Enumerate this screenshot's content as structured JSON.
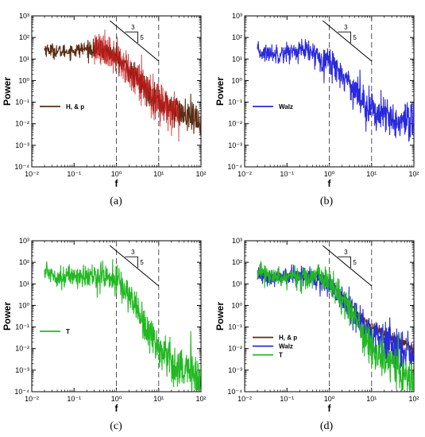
{
  "colors": {
    "hp": "#5a2d14",
    "hp_red": "#c01818",
    "walz": "#2a2adc",
    "t": "#22b822"
  },
  "chart_data": [
    {
      "type": "line",
      "panel": "a",
      "caption": "(a)",
      "xlabel": "f",
      "ylabel": "Power",
      "xscale": "log",
      "yscale": "log",
      "xlim": [
        0.01,
        100
      ],
      "ylim": [
        0.0001,
        1000
      ],
      "x_ticks": [
        "10⁻²",
        "10⁻¹",
        "10⁰",
        "10¹",
        "10²"
      ],
      "y_ticks": [
        "10⁻⁴",
        "10⁻³",
        "10⁻²",
        "10⁻¹",
        "10⁰",
        "10¹",
        "10²",
        "10³"
      ],
      "vlines": [
        1,
        10
      ],
      "slope": {
        "label_run": "3",
        "label_rise": "5"
      },
      "legend": "left",
      "series": [
        {
          "name": "H, & p",
          "color": "#5a2d14",
          "secondary_color": "#c01818",
          "noise": 0.4,
          "points": [
            [
              0.02,
              30
            ],
            [
              0.03,
              25
            ],
            [
              0.05,
              22
            ],
            [
              0.1,
              25
            ],
            [
              0.2,
              30
            ],
            [
              0.3,
              28
            ],
            [
              0.5,
              25
            ],
            [
              0.7,
              20
            ],
            [
              1,
              12
            ],
            [
              2,
              3
            ],
            [
              3,
              1.2
            ],
            [
              5,
              0.4
            ],
            [
              10,
              0.1
            ],
            [
              20,
              0.05
            ],
            [
              50,
              0.02
            ],
            [
              100,
              0.01
            ]
          ]
        }
      ]
    },
    {
      "type": "line",
      "panel": "b",
      "caption": "(b)",
      "xlabel": "f",
      "ylabel": "Power",
      "xscale": "log",
      "yscale": "log",
      "xlim": [
        0.01,
        100
      ],
      "ylim": [
        0.0001,
        1000
      ],
      "x_ticks": [
        "10⁻²",
        "10⁻¹",
        "10⁰",
        "10¹",
        "10²"
      ],
      "y_ticks": [
        "10⁻⁴",
        "10⁻³",
        "10⁻²",
        "10⁻¹",
        "10⁰",
        "10¹",
        "10²",
        "10³"
      ],
      "vlines": [
        1,
        10
      ],
      "slope": {
        "label_run": "3",
        "label_rise": "5"
      },
      "legend": "left",
      "series": [
        {
          "name": "Walz",
          "color": "#2a2adc",
          "noise": 0.55,
          "points": [
            [
              0.02,
              20
            ],
            [
              0.05,
              18
            ],
            [
              0.1,
              20
            ],
            [
              0.2,
              25
            ],
            [
              0.3,
              22
            ],
            [
              0.5,
              15
            ],
            [
              1,
              8
            ],
            [
              2,
              2
            ],
            [
              3,
              0.8
            ],
            [
              5,
              0.2
            ],
            [
              10,
              0.05
            ],
            [
              20,
              0.02
            ],
            [
              50,
              0.01
            ],
            [
              100,
              0.006
            ]
          ]
        }
      ]
    },
    {
      "type": "line",
      "panel": "c",
      "caption": "(c)",
      "xlabel": "f",
      "ylabel": "Power",
      "xscale": "log",
      "yscale": "log",
      "xlim": [
        0.01,
        100
      ],
      "ylim": [
        0.0001,
        1000
      ],
      "x_ticks": [
        "10⁻²",
        "10⁻¹",
        "10⁰",
        "10¹",
        "10²"
      ],
      "y_ticks": [
        "10⁻⁴",
        "10⁻³",
        "10⁻²",
        "10⁻¹",
        "10⁰",
        "10¹",
        "10²",
        "10³"
      ],
      "vlines": [
        1,
        10
      ],
      "slope": {
        "label_run": "3",
        "label_rise": "5"
      },
      "legend": "left",
      "series": [
        {
          "name": "T",
          "color": "#22b822",
          "noise": 0.6,
          "points": [
            [
              0.02,
              40
            ],
            [
              0.05,
              20
            ],
            [
              0.1,
              25
            ],
            [
              0.2,
              20
            ],
            [
              0.5,
              25
            ],
            [
              1,
              15
            ],
            [
              2,
              3
            ],
            [
              3,
              0.8
            ],
            [
              5,
              0.1
            ],
            [
              10,
              0.01
            ],
            [
              20,
              0.003
            ],
            [
              50,
              0.0008
            ],
            [
              100,
              0.0003
            ]
          ]
        }
      ]
    },
    {
      "type": "line",
      "panel": "d",
      "caption": "(d)",
      "xlabel": "f",
      "ylabel": "Power",
      "xscale": "log",
      "yscale": "log",
      "xlim": [
        0.01,
        100
      ],
      "ylim": [
        0.0001,
        1000
      ],
      "x_ticks": [
        "10⁻²",
        "10⁻¹",
        "10⁰",
        "10¹",
        "10²"
      ],
      "y_ticks": [
        "10⁻⁴",
        "10⁻³",
        "10⁻²",
        "10⁻¹",
        "10⁰",
        "10¹",
        "10²",
        "10³"
      ],
      "vlines": [
        1,
        10
      ],
      "slope": {
        "label_run": "3",
        "label_rise": "5"
      },
      "legend": "left",
      "series": [
        {
          "name": "H, & p",
          "color": "#5a2d14",
          "noise": 0.15,
          "points": [
            [
              0.02,
              30
            ],
            [
              0.05,
              22
            ],
            [
              0.1,
              25
            ],
            [
              0.3,
              28
            ],
            [
              0.7,
              20
            ],
            [
              1,
              12
            ],
            [
              2,
              3
            ],
            [
              5,
              0.4
            ],
            [
              10,
              0.1
            ],
            [
              20,
              0.05
            ],
            [
              50,
              0.02
            ],
            [
              100,
              0.01
            ]
          ]
        },
        {
          "name": "Walz",
          "color": "#2a2adc",
          "noise": 0.5,
          "points": [
            [
              0.02,
              20
            ],
            [
              0.05,
              18
            ],
            [
              0.1,
              20
            ],
            [
              0.3,
              22
            ],
            [
              0.5,
              15
            ],
            [
              1,
              8
            ],
            [
              2,
              2
            ],
            [
              5,
              0.2
            ],
            [
              10,
              0.05
            ],
            [
              20,
              0.02
            ],
            [
              50,
              0.01
            ],
            [
              100,
              0.006
            ]
          ]
        },
        {
          "name": "T",
          "color": "#22b822",
          "noise": 0.55,
          "points": [
            [
              0.02,
              40
            ],
            [
              0.05,
              20
            ],
            [
              0.1,
              25
            ],
            [
              0.2,
              20
            ],
            [
              0.5,
              25
            ],
            [
              1,
              15
            ],
            [
              2,
              3
            ],
            [
              5,
              0.1
            ],
            [
              10,
              0.01
            ],
            [
              20,
              0.003
            ],
            [
              50,
              0.0008
            ],
            [
              100,
              0.0003
            ]
          ]
        }
      ]
    }
  ]
}
